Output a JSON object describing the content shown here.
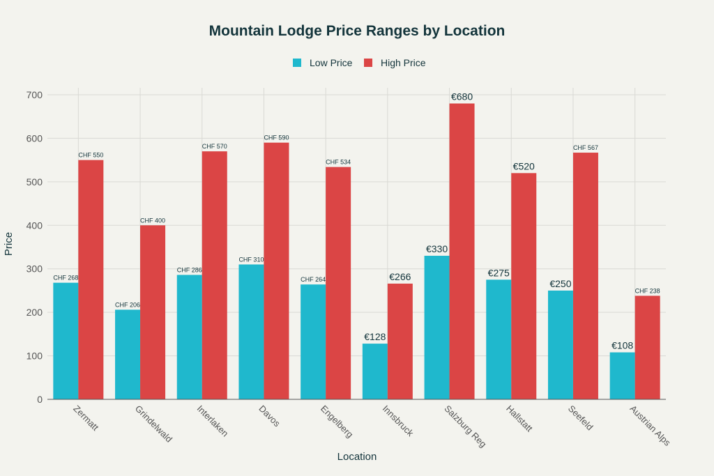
{
  "chart_data": {
    "type": "bar",
    "title": "Mountain Lodge Price Ranges by Location",
    "xlabel": "Location",
    "ylabel": "Price",
    "ylim": [
      0,
      700
    ],
    "yticks": [
      0,
      100,
      200,
      300,
      400,
      500,
      600,
      700
    ],
    "grid": true,
    "legend_position": "top-center",
    "categories": [
      "Zermatt",
      "Grindelwald",
      "Interlaken",
      "Davos",
      "Engelberg",
      "Innsbruck",
      "Salzburg Reg",
      "Hallstatt",
      "Seefeld",
      "Austrian Alps"
    ],
    "series": [
      {
        "name": "Low Price",
        "color": "#1FB8CD",
        "values": [
          268,
          206,
          286,
          310,
          264,
          128,
          330,
          275,
          250,
          108
        ],
        "labels": [
          "CHF 268",
          "CHF 206",
          "CHF 286",
          "CHF 310",
          "CHF 264",
          "€128",
          "€330",
          "€275",
          "€250",
          "€108"
        ]
      },
      {
        "name": "High Price",
        "color": "#DB4545",
        "values": [
          550,
          400,
          570,
          590,
          534,
          266,
          680,
          520,
          567,
          238
        ],
        "labels": [
          "CHF 550",
          "CHF 400",
          "CHF 570",
          "CHF 590",
          "CHF 534",
          "€266",
          "€680",
          "€520",
          "CHF 567",
          "CHF 238"
        ]
      }
    ]
  }
}
